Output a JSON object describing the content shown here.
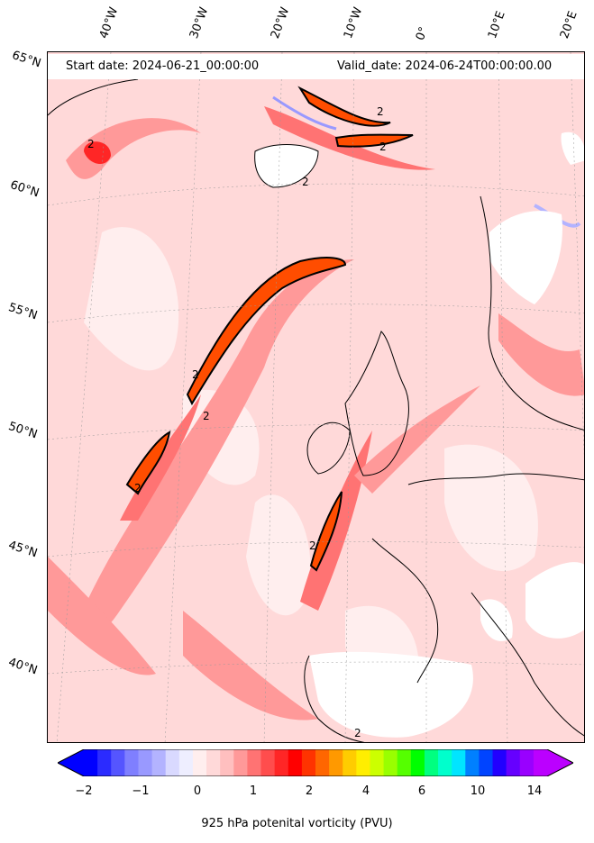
{
  "header": {
    "start_date": "Start date: 2024-06-21_00:00:00",
    "valid_date": "Valid_date: 2024-06-24T00:00:00.00"
  },
  "longitude_labels": [
    "40°W",
    "30°W",
    "20°W",
    "10°W",
    "0°",
    "10°E",
    "20°E"
  ],
  "latitude_labels": [
    "65°N",
    "60°N",
    "55°N",
    "50°N",
    "45°N",
    "40°N"
  ],
  "contour_label": "2",
  "colorbar": {
    "label": "925 hPa potenital vorticity (PVU)",
    "tick_labels": [
      "−2",
      "−1",
      "0",
      "1",
      "2",
      "4",
      "6",
      "10",
      "14"
    ],
    "colors": [
      "#0000ff",
      "#2b2bff",
      "#5555ff",
      "#7f7fff",
      "#9999ff",
      "#b3b3ff",
      "#d9d9ff",
      "#eeeeff",
      "#ffeeee",
      "#ffd9d9",
      "#ffbfbf",
      "#ff9999",
      "#ff7373",
      "#ff4d4d",
      "#ff2626",
      "#ff0000",
      "#ff3300",
      "#ff6600",
      "#ff9900",
      "#ffcc00",
      "#ffee00",
      "#ccff00",
      "#99ff00",
      "#55ff00",
      "#00ff00",
      "#00ff80",
      "#00ffcc",
      "#00e5ff",
      "#0080ff",
      "#0044ff",
      "#2200ff",
      "#6600ff",
      "#9900ff",
      "#bb00ff"
    ]
  },
  "colors": {
    "background": "#ffd9d9",
    "land_mask": "#ffffff",
    "coastline": "#000000",
    "high_pv": "#ff4d00"
  }
}
